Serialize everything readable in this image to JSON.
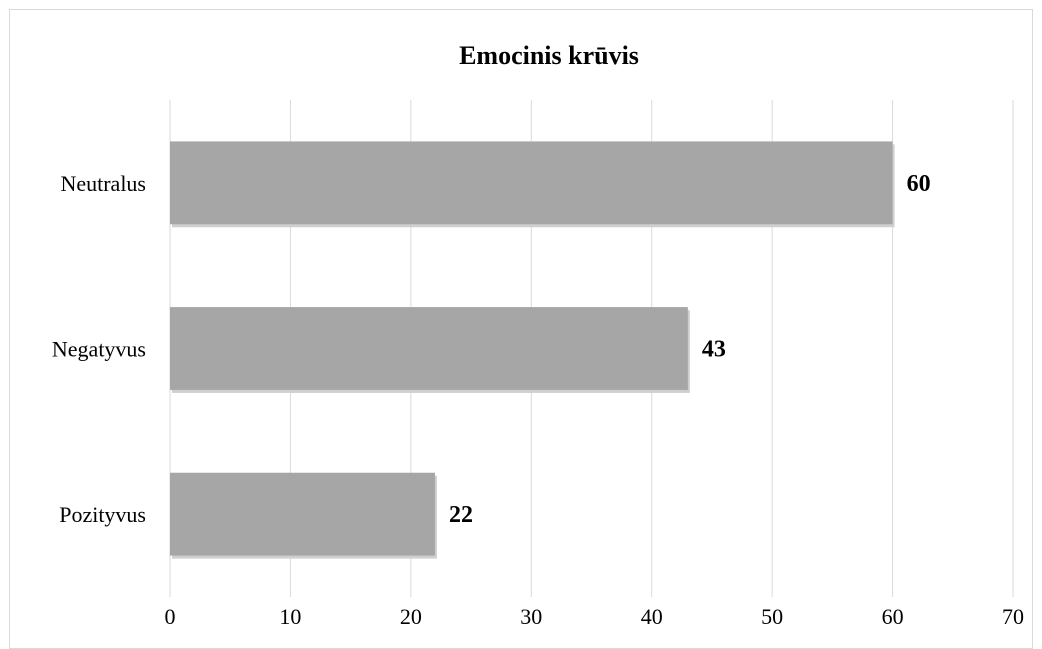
{
  "chart_data": {
    "type": "bar",
    "orientation": "horizontal",
    "title": "Emocinis krūvis",
    "xlabel": "",
    "ylabel": "",
    "categories": [
      "Neutralus",
      "Negatyvus",
      "Pozityvus"
    ],
    "values": [
      60,
      43,
      22
    ],
    "xlim": [
      0,
      70
    ],
    "ticks": [
      0,
      10,
      20,
      30,
      40,
      50,
      60,
      70
    ],
    "grid": true,
    "legend": "none",
    "bar_color": "#a6a6a6",
    "grid_color": "#d9d9d9"
  }
}
